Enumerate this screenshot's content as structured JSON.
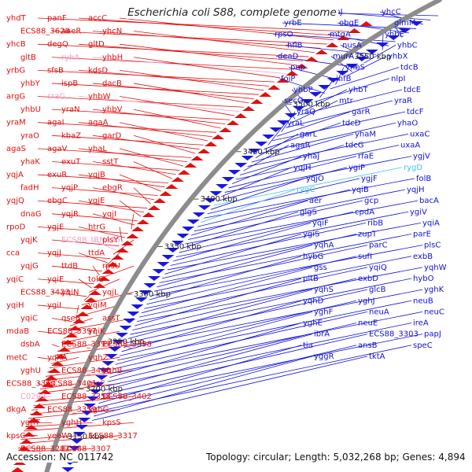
{
  "title": "Escherichia coli S88, complete genome",
  "footer": {
    "accession": "Accession: NC_011742",
    "summary": "Topology: circular; Length: 5,032,268 bp; Genes: 4,894"
  },
  "colors": {
    "left_labels": "#e01010",
    "left_labels_rna": "#f0a0c8",
    "right_labels": "#1010d8",
    "right_labels_rna": "#40c0f0",
    "backbone": "#8c8c8c",
    "forward_arrows": "#e01010",
    "reverse_arrows": "#1818e0"
  },
  "scale_ticks": [
    "3550 kbp",
    "3500 kbp",
    "3450 kbp",
    "3400 kbp",
    "3350 kbp",
    "3300 kbp",
    "3250 kbp",
    "3200 kbp",
    "3150 kbp"
  ],
  "left_genes": [
    "yhdT",
    "panF",
    "accC",
    "ECS88_3628",
    "aaeR",
    "yhcN",
    "yhcB",
    "degQ",
    "gltD",
    "gltB",
    "ryhA",
    "yhbH",
    "yrbG",
    "sfsB",
    "kdsD",
    "yhbY",
    "ispB",
    "dacB",
    "argG",
    "sraG",
    "yhbW",
    "yhbU",
    "yraN",
    "yhbV",
    "yraM",
    "agaI",
    "agaA",
    "yraO",
    "kbaZ",
    "garD",
    "agaS",
    "agaV",
    "yhaL",
    "yhaK",
    "exuT",
    "sstT",
    "yqjA",
    "exuR",
    "yqjB",
    "fadH",
    "yqjP",
    "ebgR",
    "yqjQ",
    "ebgC",
    "yqjE",
    "dnaG",
    "yqjR",
    "yqjI",
    "rpoD",
    "ygjE",
    "htrG",
    "yqjK",
    "ECS88_tRNA35",
    "plsY",
    "cca",
    "yqjJ",
    "ttdA",
    "yqjG",
    "ttdB",
    "rpsU",
    "yqiC",
    "yqiE",
    "tolC",
    "ECS88_3423",
    "yqiN",
    "yqjL",
    "yqiH",
    "ygiI",
    "yqiM",
    "yqiC",
    "qseB",
    "assT",
    "mdaB",
    "ECS88_3397",
    "yqiK",
    "dsbA",
    "ECS88_3399",
    "ECS88_3398",
    "metC",
    "yqhA",
    "yqhZ",
    "yghU",
    "ECS88_3400",
    "yqhB",
    "ECS88_3360",
    "ECS88_3401",
    "glcC",
    "C0299",
    "ECS88_3358",
    "ECS88_3402",
    "dkgA",
    "ECS88_3359",
    "yghG",
    "yghT",
    "yghH",
    "kpsS",
    "kpsC",
    "yeeW",
    "ECS88_3317",
    "ECS88_3282",
    "ECS88_3307"
  ],
  "right_genes": [
    "yrbB",
    "rrmJ",
    "yhcC",
    "yrbE",
    "obgE",
    "glmM",
    "rpsO",
    "mtgA",
    "yhbE",
    "hflB",
    "nusA",
    "yhbC",
    "deaD",
    "murA",
    "yhbX",
    "pnp",
    "yhbS",
    "tdcB",
    "foiP",
    "infB",
    "nlpI",
    "yhbP",
    "yhbT",
    "tdcE",
    "secG",
    "mtr",
    "yraR",
    "yraQ",
    "garR",
    "tdcF",
    "yraL",
    "tdcD",
    "yhaO",
    "garL",
    "yhaM",
    "uxaC",
    "agaR",
    "tdcG",
    "uxaA",
    "yhaJ",
    "rfaE",
    "ygjV",
    "yqjH",
    "ygiP",
    "rygD",
    "yqjO",
    "ygjF",
    "folB",
    "rygC",
    "yqiB",
    "yqjH",
    "aer",
    "gcp",
    "bacA",
    "glgS",
    "cpdA",
    "ygiV",
    "yqiF",
    "ribB",
    "yqiA",
    "ygiS",
    "zupT",
    "parE",
    "yqhA",
    "parC",
    "plsC",
    "hybG",
    "sufI",
    "exbB",
    "gss",
    "yqiQ",
    "yqhW",
    "pitB",
    "exbD",
    "hybO",
    "yqhS",
    "glcB",
    "yghK",
    "yqhD",
    "yghJ",
    "neuB",
    "yghF",
    "neuA",
    "neuC",
    "yghE",
    "neuE",
    "ireA",
    "ibrA",
    "ECS88_3303",
    "papJ",
    "tia",
    "ansB",
    "speC",
    "yggR",
    "tktA"
  ]
}
